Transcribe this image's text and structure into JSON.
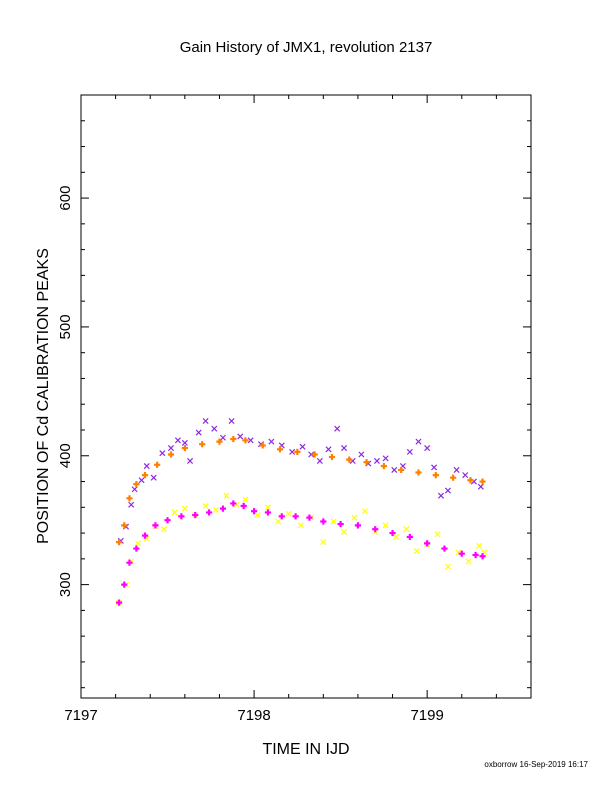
{
  "chart_data": {
    "type": "scatter",
    "title": "Gain History of JMX1, revolution 2137",
    "xlabel": "TIME IN IJD",
    "ylabel": "POSITION OF Cd CALIBRATION PEAKS",
    "xlim": [
      7197,
      7199.6
    ],
    "ylim": [
      212,
      680
    ],
    "x_ticks": [
      "7197",
      "7198",
      "7199"
    ],
    "y_ticks": [
      "300",
      "400",
      "500",
      "600"
    ],
    "grid": false,
    "legend": "none",
    "series": [
      {
        "marker": "x",
        "color": "#8a2be2",
        "points": [
          [
            7197.23,
            334
          ],
          [
            7197.26,
            345
          ],
          [
            7197.29,
            362
          ],
          [
            7197.31,
            374
          ],
          [
            7197.35,
            381
          ],
          [
            7197.38,
            392
          ],
          [
            7197.42,
            383
          ],
          [
            7197.47,
            402
          ],
          [
            7197.52,
            406
          ],
          [
            7197.56,
            412
          ],
          [
            7197.6,
            410
          ],
          [
            7197.63,
            396
          ],
          [
            7197.68,
            418
          ],
          [
            7197.72,
            427
          ],
          [
            7197.77,
            421
          ],
          [
            7197.82,
            414
          ],
          [
            7197.87,
            427
          ],
          [
            7197.92,
            415
          ],
          [
            7197.98,
            412
          ],
          [
            7198.04,
            409
          ],
          [
            7198.1,
            411
          ],
          [
            7198.16,
            408
          ],
          [
            7198.22,
            403
          ],
          [
            7198.28,
            407
          ],
          [
            7198.33,
            401
          ],
          [
            7198.38,
            396
          ],
          [
            7198.43,
            405
          ],
          [
            7198.48,
            421
          ],
          [
            7198.52,
            406
          ],
          [
            7198.57,
            396
          ],
          [
            7198.62,
            401
          ],
          [
            7198.66,
            394
          ],
          [
            7198.71,
            396
          ],
          [
            7198.76,
            398
          ],
          [
            7198.81,
            389
          ],
          [
            7198.86,
            392
          ],
          [
            7198.9,
            403
          ],
          [
            7198.95,
            411
          ],
          [
            7199,
            406
          ],
          [
            7199.04,
            391
          ],
          [
            7199.08,
            369
          ],
          [
            7199.12,
            373
          ],
          [
            7199.17,
            389
          ],
          [
            7199.22,
            385
          ],
          [
            7199.27,
            380
          ],
          [
            7199.31,
            376
          ]
        ]
      },
      {
        "marker": "+",
        "color": "#ff8000",
        "points": [
          [
            7197.22,
            333
          ],
          [
            7197.25,
            346
          ],
          [
            7197.28,
            367
          ],
          [
            7197.32,
            378
          ],
          [
            7197.37,
            385
          ],
          [
            7197.44,
            393
          ],
          [
            7197.52,
            401
          ],
          [
            7197.6,
            406
          ],
          [
            7197.7,
            409
          ],
          [
            7197.8,
            411
          ],
          [
            7197.88,
            413
          ],
          [
            7197.95,
            412
          ],
          [
            7198.05,
            408
          ],
          [
            7198.15,
            405
          ],
          [
            7198.25,
            403
          ],
          [
            7198.35,
            401
          ],
          [
            7198.45,
            399
          ],
          [
            7198.55,
            397
          ],
          [
            7198.65,
            395
          ],
          [
            7198.75,
            392
          ],
          [
            7198.85,
            389
          ],
          [
            7198.95,
            387
          ],
          [
            7199.05,
            385
          ],
          [
            7199.15,
            383
          ],
          [
            7199.25,
            381
          ],
          [
            7199.32,
            380
          ]
        ]
      },
      {
        "marker": "x",
        "color": "#ffff00",
        "points": [
          [
            7197.22,
            286
          ],
          [
            7197.26,
            300
          ],
          [
            7197.29,
            318
          ],
          [
            7197.33,
            332
          ],
          [
            7197.38,
            336
          ],
          [
            7197.43,
            345
          ],
          [
            7197.48,
            343
          ],
          [
            7197.54,
            356
          ],
          [
            7197.6,
            359
          ],
          [
            7197.66,
            354
          ],
          [
            7197.72,
            361
          ],
          [
            7197.78,
            358
          ],
          [
            7197.84,
            369
          ],
          [
            7197.9,
            362
          ],
          [
            7197.95,
            366
          ],
          [
            7198.02,
            354
          ],
          [
            7198.08,
            360
          ],
          [
            7198.14,
            349
          ],
          [
            7198.2,
            355
          ],
          [
            7198.27,
            346
          ],
          [
            7198.33,
            352
          ],
          [
            7198.4,
            333
          ],
          [
            7198.46,
            349
          ],
          [
            7198.52,
            341
          ],
          [
            7198.58,
            352
          ],
          [
            7198.64,
            357
          ],
          [
            7198.7,
            341
          ],
          [
            7198.76,
            346
          ],
          [
            7198.82,
            337
          ],
          [
            7198.88,
            343
          ],
          [
            7198.94,
            326
          ],
          [
            7199,
            331
          ],
          [
            7199.06,
            339
          ],
          [
            7199.12,
            314
          ],
          [
            7199.18,
            325
          ],
          [
            7199.24,
            318
          ],
          [
            7199.3,
            330
          ],
          [
            7199.33,
            325
          ]
        ]
      },
      {
        "marker": "+",
        "color": "#ff00ff",
        "points": [
          [
            7197.22,
            286
          ],
          [
            7197.25,
            300
          ],
          [
            7197.28,
            317
          ],
          [
            7197.32,
            328
          ],
          [
            7197.37,
            338
          ],
          [
            7197.43,
            346
          ],
          [
            7197.5,
            350
          ],
          [
            7197.58,
            353
          ],
          [
            7197.66,
            354
          ],
          [
            7197.74,
            356
          ],
          [
            7197.82,
            359
          ],
          [
            7197.88,
            363
          ],
          [
            7197.94,
            361
          ],
          [
            7198.0,
            357
          ],
          [
            7198.08,
            356
          ],
          [
            7198.16,
            353
          ],
          [
            7198.24,
            353
          ],
          [
            7198.32,
            352
          ],
          [
            7198.4,
            349
          ],
          [
            7198.5,
            347
          ],
          [
            7198.6,
            346
          ],
          [
            7198.7,
            343
          ],
          [
            7198.8,
            340
          ],
          [
            7198.9,
            337
          ],
          [
            7199.0,
            332
          ],
          [
            7199.1,
            328
          ],
          [
            7199.2,
            324
          ],
          [
            7199.28,
            323
          ],
          [
            7199.32,
            322
          ]
        ]
      }
    ]
  },
  "footer": "oxborrow 16-Sep-2019 16:17"
}
